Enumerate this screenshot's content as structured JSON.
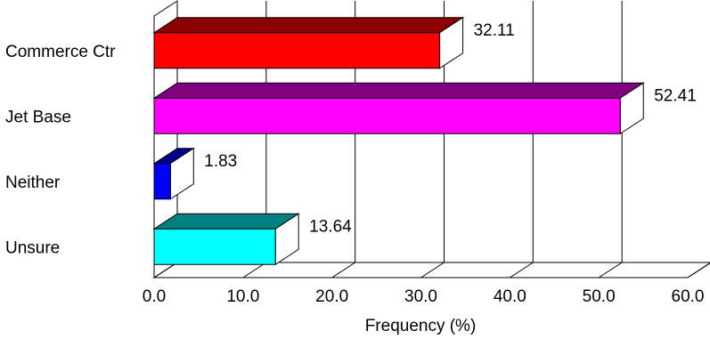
{
  "chart_data": {
    "type": "bar",
    "orientation": "horizontal",
    "style": "3d",
    "categories": [
      "Commerce Ctr",
      "Jet Base",
      "Neither",
      "Unsure"
    ],
    "series": [
      {
        "values": [
          32.11,
          52.41,
          1.83,
          13.64
        ]
      }
    ],
    "data_labels": [
      "32.11",
      "52.41",
      "1.83",
      "13.64"
    ],
    "bar_colors": [
      {
        "front": "#ff0000",
        "top": "#8b0000"
      },
      {
        "front": "#ff00ff",
        "top": "#800080"
      },
      {
        "front": "#0000ff",
        "top": "#00008b"
      },
      {
        "front": "#00ffff",
        "top": "#008080"
      }
    ],
    "title": "",
    "xlabel": "Frequency (%)",
    "ylabel": "",
    "xlim": [
      0,
      60
    ],
    "x_ticks": [
      "0.0",
      "10.0",
      "20.0",
      "30.0",
      "40.0",
      "50.0",
      "60.0"
    ],
    "grid": true,
    "legend": "none"
  }
}
